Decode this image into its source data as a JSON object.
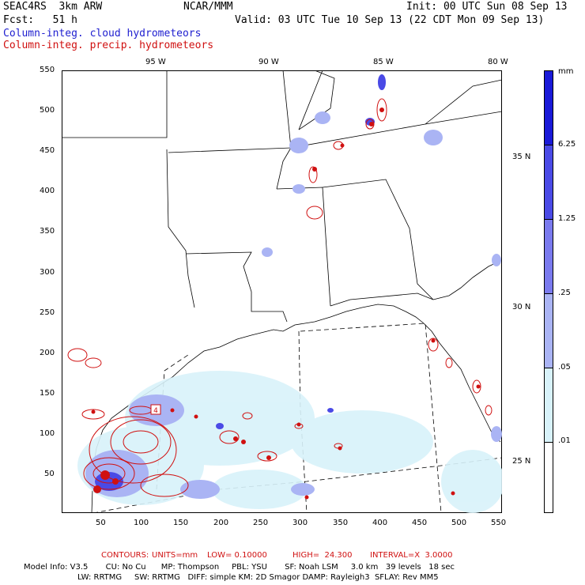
{
  "header": {
    "model": "SEAC4RS  3km ARW",
    "org": "NCAR/MMM",
    "init": "Init: 00 UTC Sun 08 Sep 13",
    "fcst": "Fcst:   51 h",
    "valid": "Valid: 03 UTC Tue 10 Sep 13 (22 CDT Mon 09 Sep 13)",
    "field1": "Column-integ. cloud hydrometeors",
    "field2": "Column-integ. precip. hydrometeors"
  },
  "axes": {
    "lon_labels": [
      "95 W",
      "90 W",
      "85 W",
      "80 W"
    ],
    "lat_labels": [
      "35 N",
      "30 N",
      "25 N"
    ],
    "x_ticks": [
      "50",
      "100",
      "150",
      "200",
      "250",
      "300",
      "350",
      "400",
      "450",
      "500",
      "550"
    ],
    "y_ticks": [
      "550",
      "500",
      "450",
      "400",
      "350",
      "300",
      "250",
      "200",
      "150",
      "100",
      "50"
    ]
  },
  "legend": {
    "unit": "mm",
    "levels": [
      "6.25",
      "1.25",
      ".25",
      ".05",
      ".01"
    ],
    "colors": [
      "#1a1ad8",
      "#4a4ae6",
      "#7a7aee",
      "#aab4f4",
      "#d8f2fa",
      "#ffffff"
    ]
  },
  "contours": {
    "label": "CONTOURS:",
    "units": "UNITS=mm",
    "low": "LOW= 0.10000",
    "high": "HIGH=  24.300",
    "interval": "INTERVAL=X  3.0000"
  },
  "footer": {
    "line1": "Model Info: V3.5       CU: No Cu      MP: Thompson     PBL: YSU       SF: Noah LSM     3.0 km   39 levels   18 sec",
    "line2": "LW: RRTMG     SW: RRTMG   DIFF: simple KM: 2D Smagor DAMP: Rayleigh3  SFLAY: Rev MM5"
  },
  "map_marker": "4"
}
